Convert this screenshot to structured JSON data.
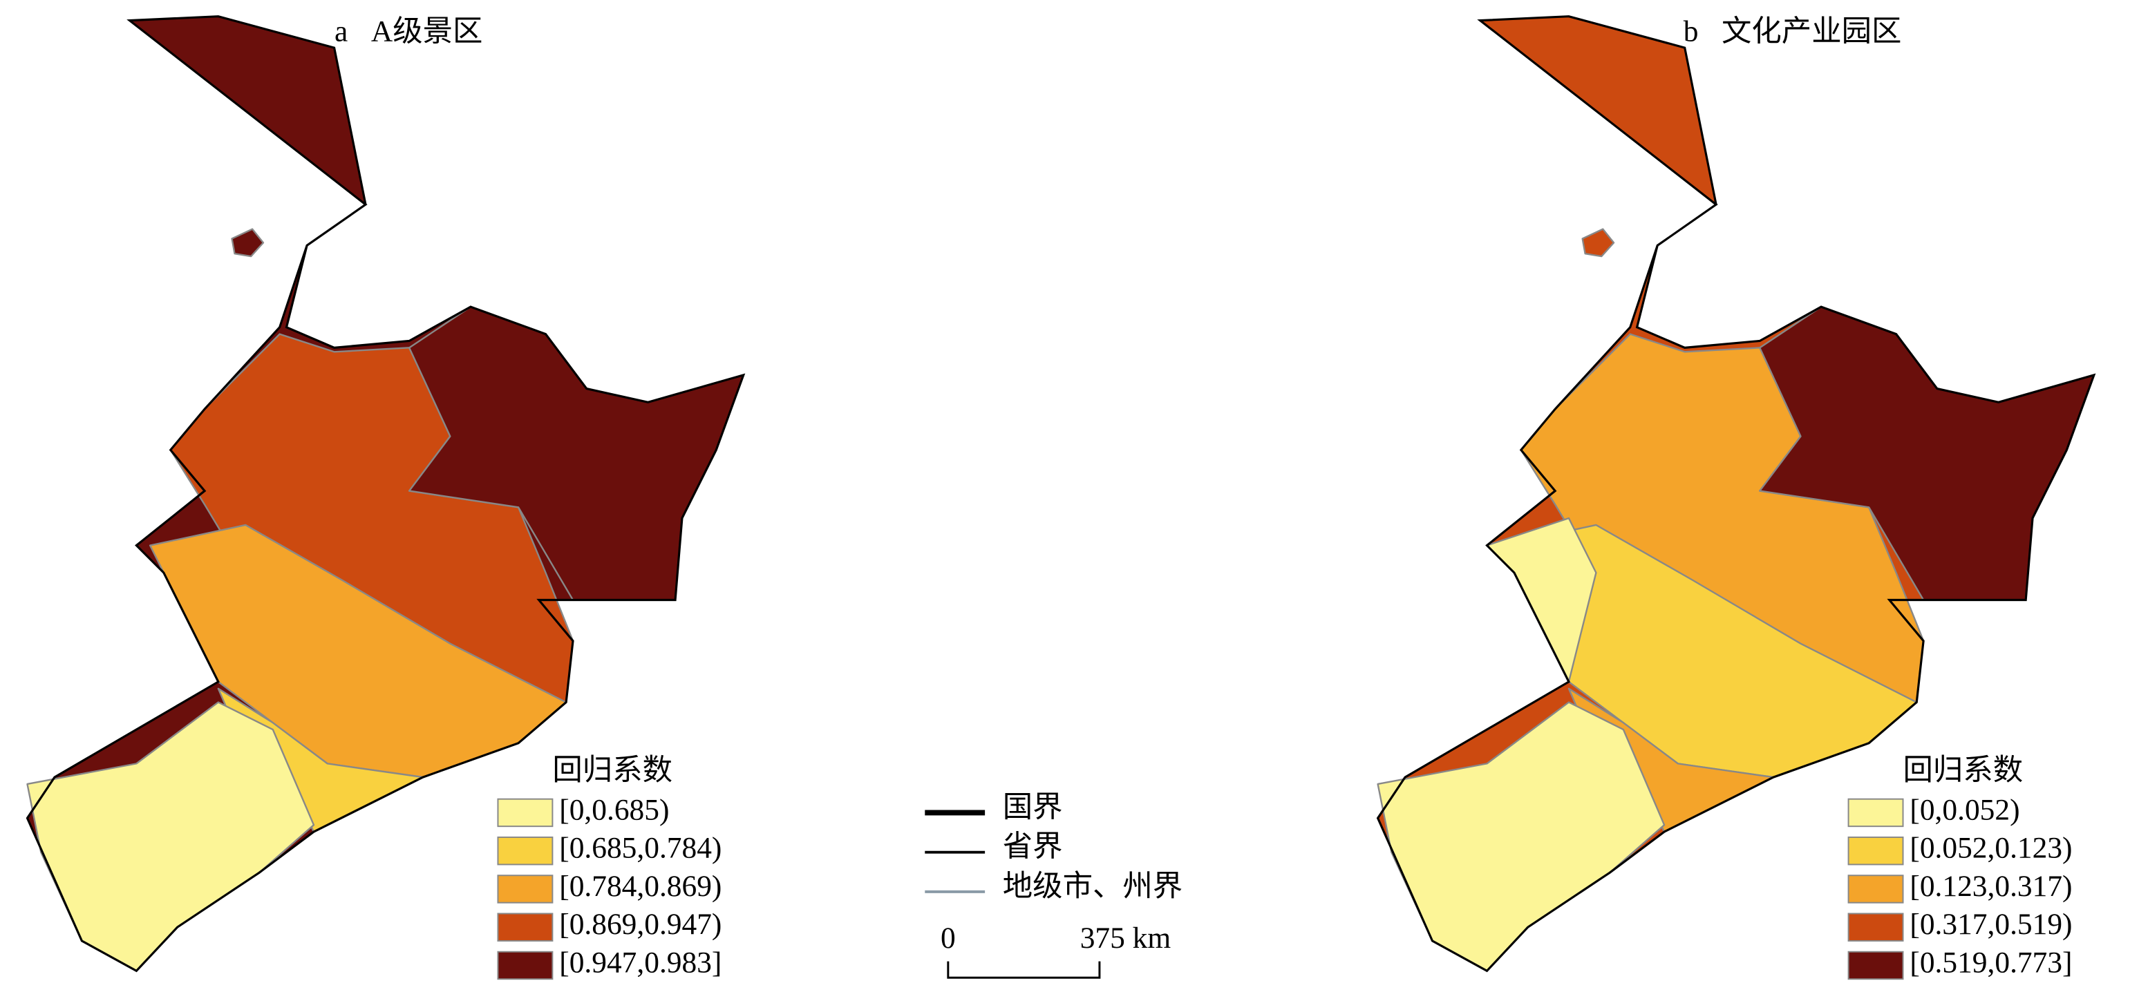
{
  "maps": [
    {
      "label": "a",
      "title": "A级景区",
      "legend": {
        "title": "回归系数",
        "classes": [
          {
            "label": "[0,0.685)",
            "color": "#fcf597"
          },
          {
            "label": "[0.685,0.784)",
            "color": "#f9d13f"
          },
          {
            "label": "[0.784,0.869)",
            "color": "#f4a42a"
          },
          {
            "label": "[0.869,0.947)",
            "color": "#cc4a10"
          },
          {
            "label": "[0.947,0.983]",
            "color": "#6a0f0c"
          }
        ]
      }
    },
    {
      "label": "b",
      "title": "文化产业园区",
      "legend": {
        "title": "回归系数",
        "classes": [
          {
            "label": "[0,0.052)",
            "color": "#fcf597"
          },
          {
            "label": "[0.052,0.123)",
            "color": "#f9d13f"
          },
          {
            "label": "[0.123,0.317)",
            "color": "#f4a42a"
          },
          {
            "label": "[0.317,0.519)",
            "color": "#cc4a10"
          },
          {
            "label": "[0.519,0.773]",
            "color": "#6a0f0c"
          }
        ]
      }
    }
  ],
  "boundary_legend": [
    {
      "label": "国界",
      "color": "#000000"
    },
    {
      "label": "省界",
      "color": "#000000"
    },
    {
      "label": "地级市、州界",
      "color": "#8a9aa6"
    }
  ],
  "scale_bar": {
    "start_label": "0",
    "end_label": "375 km"
  }
}
